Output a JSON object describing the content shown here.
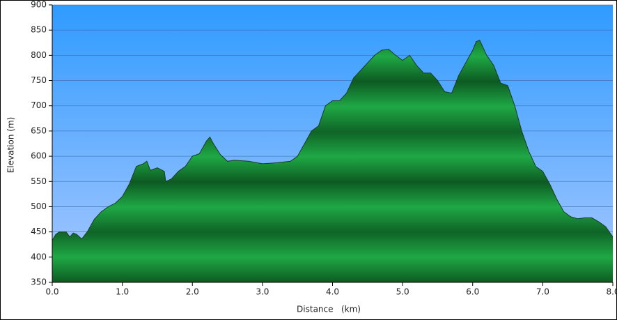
{
  "chart_data": {
    "type": "area",
    "x_label": "Distance   (km)",
    "y_label": "Elevation (m)",
    "color": "#22a845",
    "grid": true,
    "xlim": [
      0,
      8.0
    ],
    "ylim": [
      350,
      900
    ],
    "xticks": [
      {
        "value": 0,
        "label": "0.0"
      },
      {
        "value": 1,
        "label": "1.0"
      },
      {
        "value": 2,
        "label": "2.0"
      },
      {
        "value": 3,
        "label": "3.0"
      },
      {
        "value": 4,
        "label": "4.0"
      },
      {
        "value": 5,
        "label": "5.0"
      },
      {
        "value": 6,
        "label": "6.0"
      },
      {
        "value": 7,
        "label": "7.0"
      },
      {
        "value": 8,
        "label": "8.0"
      }
    ],
    "yticks": [
      350,
      400,
      450,
      500,
      550,
      600,
      650,
      700,
      750,
      800,
      850,
      900
    ],
    "x": [
      0.0,
      0.05,
      0.1,
      0.2,
      0.25,
      0.3,
      0.35,
      0.42,
      0.5,
      0.6,
      0.7,
      0.8,
      0.9,
      1.0,
      1.1,
      1.2,
      1.3,
      1.35,
      1.4,
      1.5,
      1.6,
      1.62,
      1.7,
      1.8,
      1.9,
      2.0,
      2.1,
      2.2,
      2.25,
      2.3,
      2.4,
      2.5,
      2.6,
      2.8,
      3.0,
      3.2,
      3.4,
      3.5,
      3.6,
      3.7,
      3.8,
      3.9,
      4.0,
      4.1,
      4.2,
      4.3,
      4.4,
      4.5,
      4.6,
      4.7,
      4.8,
      4.9,
      5.0,
      5.1,
      5.2,
      5.3,
      5.4,
      5.5,
      5.6,
      5.7,
      5.8,
      5.9,
      6.0,
      6.05,
      6.1,
      6.2,
      6.3,
      6.4,
      6.5,
      6.6,
      6.7,
      6.8,
      6.9,
      7.0,
      7.1,
      7.2,
      7.3,
      7.4,
      7.5,
      7.6,
      7.7,
      7.8,
      7.9,
      8.0
    ],
    "values": [
      433,
      445,
      450,
      450,
      440,
      448,
      445,
      436,
      450,
      475,
      490,
      500,
      507,
      520,
      545,
      580,
      585,
      590,
      572,
      577,
      570,
      550,
      555,
      570,
      580,
      600,
      605,
      630,
      638,
      625,
      603,
      590,
      592,
      590,
      585,
      587,
      590,
      600,
      625,
      650,
      660,
      700,
      710,
      710,
      725,
      755,
      770,
      785,
      800,
      810,
      812,
      800,
      790,
      800,
      780,
      765,
      765,
      750,
      728,
      725,
      760,
      785,
      810,
      827,
      830,
      800,
      780,
      745,
      740,
      700,
      650,
      610,
      580,
      570,
      545,
      515,
      490,
      480,
      476,
      478,
      478,
      470,
      460,
      440
    ]
  }
}
